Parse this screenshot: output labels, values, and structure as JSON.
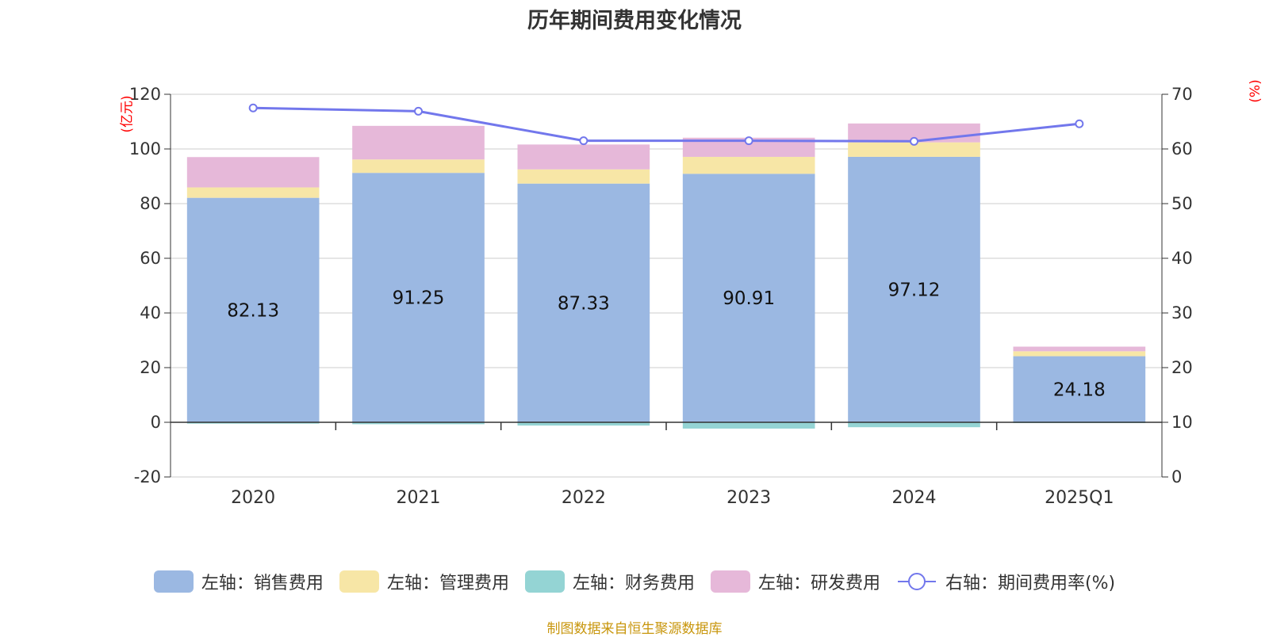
{
  "title": "历年期间费用变化情况",
  "left_axis_unit": "(亿元)",
  "right_axis_unit": "(%)",
  "source_note": "制图数据来自恒生聚源数据库",
  "chart_data": {
    "type": "bar",
    "stacked": true,
    "categories": [
      "2020",
      "2021",
      "2022",
      "2023",
      "2024",
      "2025Q1"
    ],
    "y_left": {
      "ylim": [
        -20,
        120
      ],
      "ticks": [
        -20,
        0,
        20,
        40,
        60,
        80,
        100,
        120
      ]
    },
    "y_right": {
      "ylim": [
        0,
        70
      ],
      "ticks": [
        0,
        10,
        20,
        30,
        40,
        50,
        60,
        70
      ]
    },
    "series": [
      {
        "name": "左轴：销售费用",
        "type": "bar",
        "axis": "left",
        "color": "#9bb8e2",
        "values": [
          82.13,
          91.25,
          87.33,
          90.91,
          97.12,
          24.18
        ],
        "show_labels": true
      },
      {
        "name": "左轴：管理费用",
        "type": "bar",
        "axis": "left",
        "color": "#f7e6a6",
        "values": [
          3.8,
          4.9,
          5.2,
          6.2,
          5.3,
          1.8
        ]
      },
      {
        "name": "左轴：财务费用",
        "type": "bar",
        "axis": "left",
        "color": "#94d4d4",
        "values": [
          -0.5,
          -0.7,
          -1.2,
          -2.3,
          -1.8,
          -0.3
        ]
      },
      {
        "name": "左轴：研发费用",
        "type": "bar",
        "axis": "left",
        "color": "#e6b8d9",
        "values": [
          11.1,
          12.3,
          9.1,
          7.0,
          6.9,
          1.7
        ]
      },
      {
        "name": "右轴：期间费用率(%)",
        "type": "line",
        "axis": "right",
        "color": "#7277ec",
        "values": [
          67.5,
          66.9,
          61.5,
          61.5,
          61.4,
          64.6
        ]
      }
    ],
    "grid": true,
    "legend_position": "bottom"
  }
}
